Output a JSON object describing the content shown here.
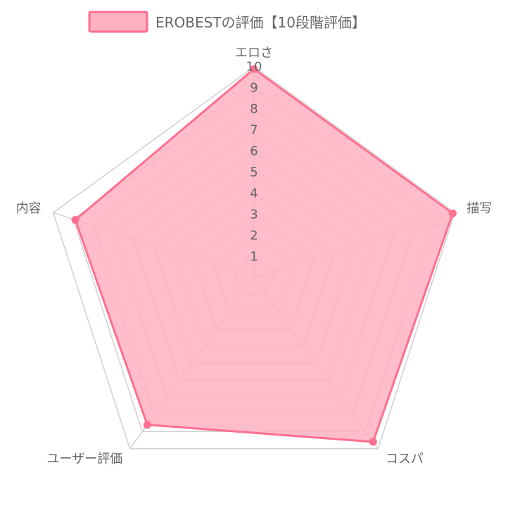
{
  "chart_data": {
    "type": "radar",
    "axes": [
      "エロさ",
      "描写",
      "コスパ",
      "ユーザー評価",
      "内容"
    ],
    "series": [
      {
        "name": "EROBESTの評価【10段階評価】",
        "values": [
          9.9,
          9.9,
          9.6,
          8.6,
          8.9
        ],
        "fill_color": "#ffb0c1",
        "line_color": "#ff6f8f",
        "point_color": "#ff6f8f"
      }
    ],
    "rlim": [
      0,
      10
    ],
    "ticks": [
      "1",
      "2",
      "3",
      "4",
      "5",
      "6",
      "7",
      "8",
      "9",
      "10"
    ],
    "grid": true,
    "legend_position": "top",
    "grid_color": "#d0d0d0"
  }
}
